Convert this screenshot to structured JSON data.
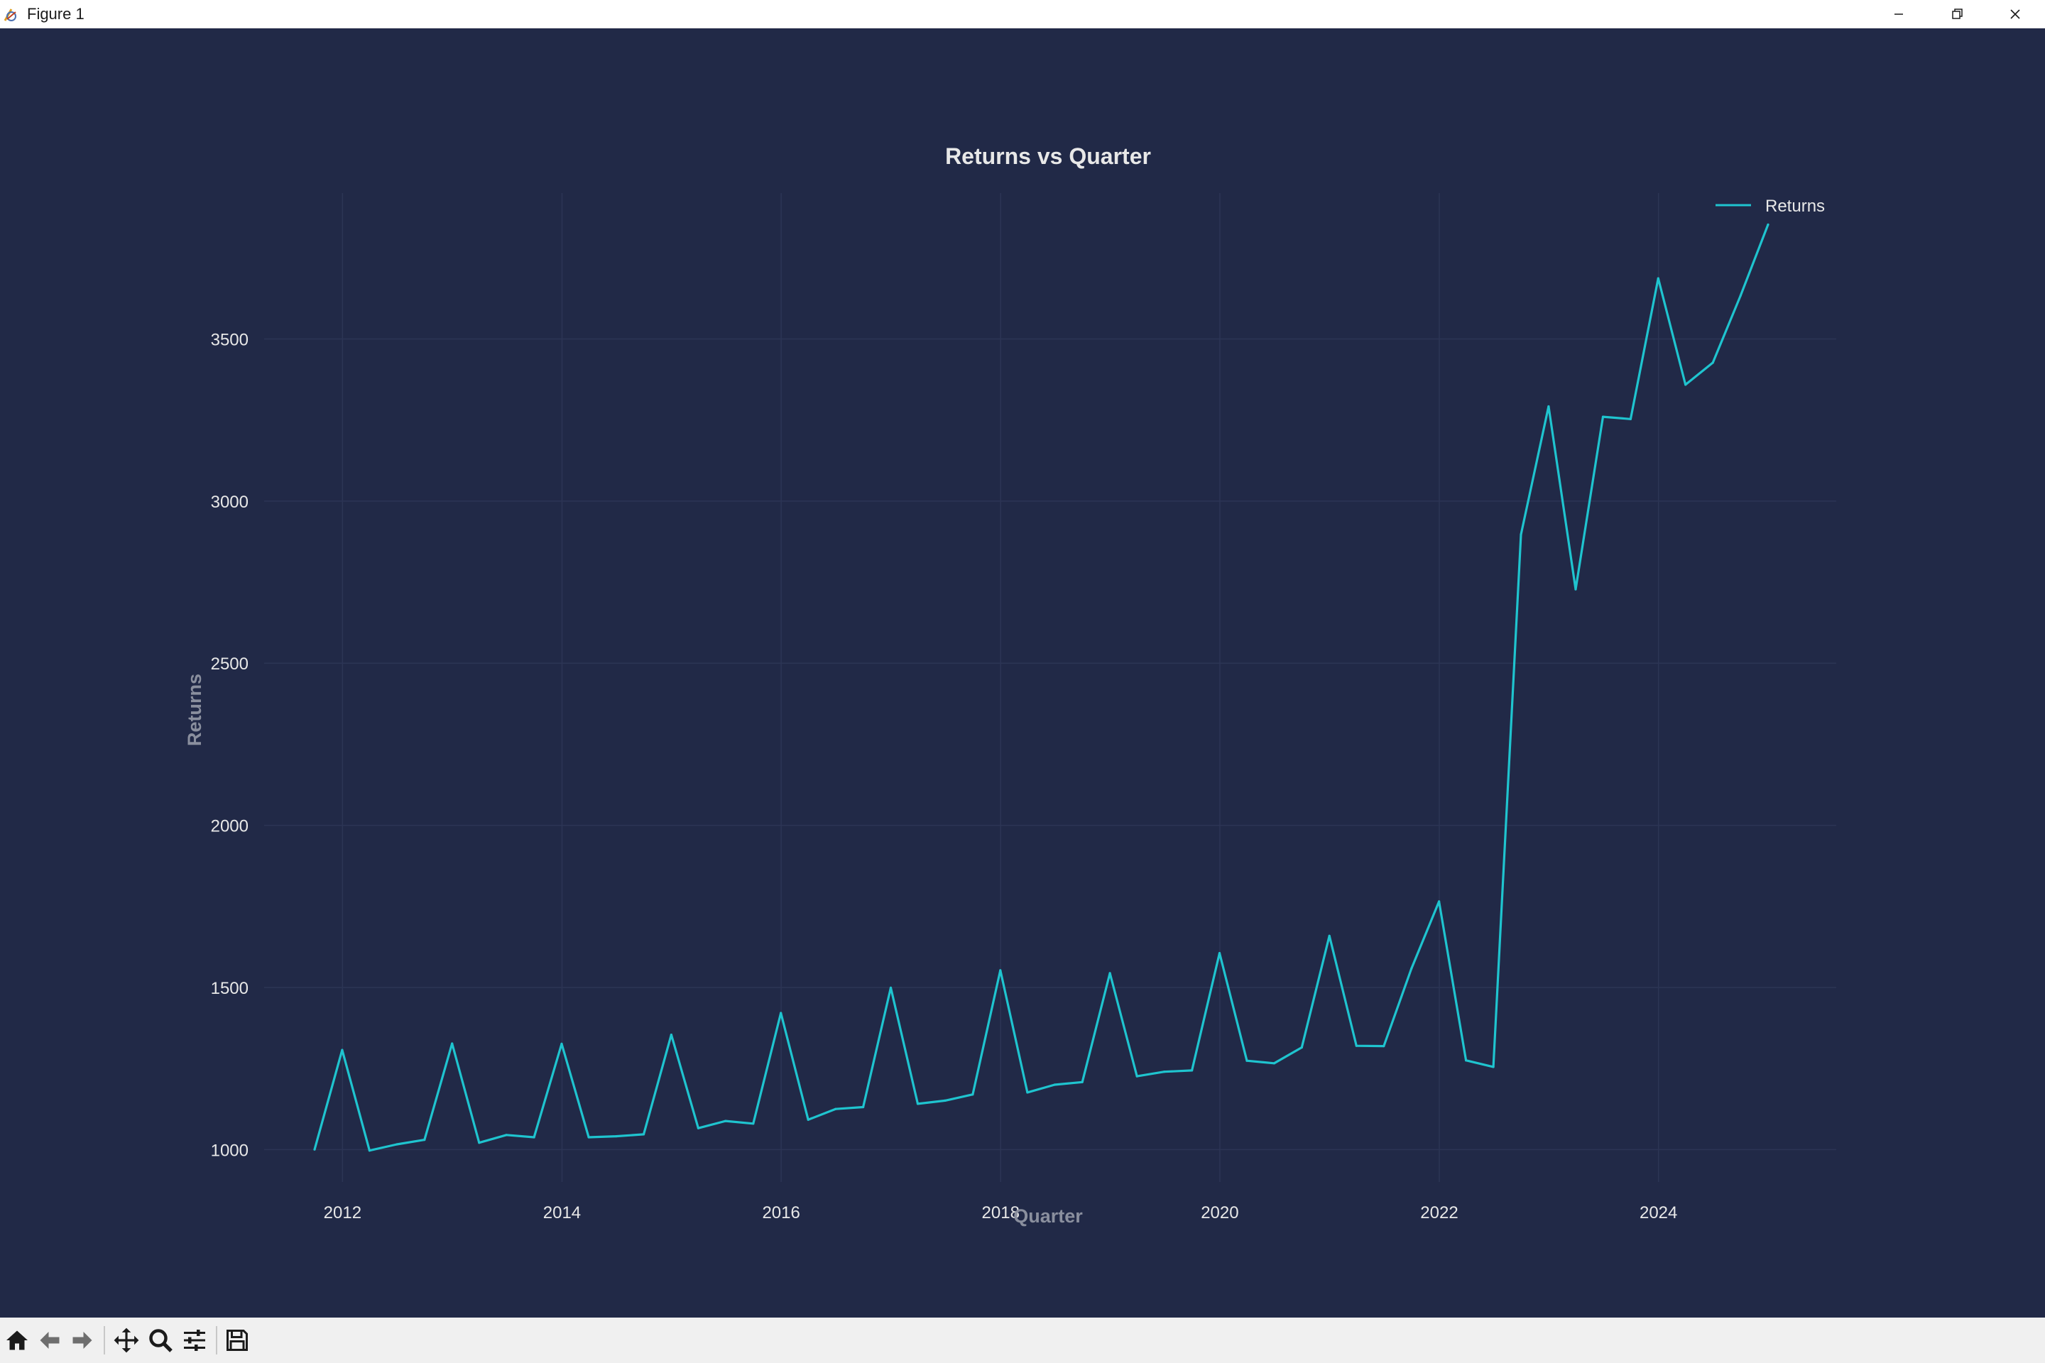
{
  "window": {
    "title": "Figure 1"
  },
  "toolbar": {
    "tools": [
      "home-icon",
      "back-arrow-icon",
      "forward-arrow-icon",
      "pan-icon",
      "zoom-icon",
      "configure-subplots-icon",
      "save-icon"
    ]
  },
  "colors": {
    "background": "#212947",
    "line": "#1fc4cf",
    "grid": "#2c3555",
    "text": "#e8e8e8",
    "label": "#8a8f9e"
  },
  "chart_data": {
    "type": "line",
    "title": "Returns vs Quarter",
    "xlabel": "Quarter",
    "ylabel": "Returns",
    "xlim": [
      "2011-04-15",
      "2025-08-15"
    ],
    "ylim": [
      900,
      3950
    ],
    "x_ticks": [
      {
        "label": "2012",
        "date": "2012-01-01"
      },
      {
        "label": "2014",
        "date": "2014-01-01"
      },
      {
        "label": "2016",
        "date": "2016-01-01"
      },
      {
        "label": "2018",
        "date": "2018-01-01"
      },
      {
        "label": "2020",
        "date": "2020-01-01"
      },
      {
        "label": "2022",
        "date": "2022-01-01"
      },
      {
        "label": "2024",
        "date": "2024-01-01"
      }
    ],
    "y_ticks": [
      1000,
      1500,
      2000,
      2500,
      3000,
      3500
    ],
    "grid": true,
    "legend_position": "top-right",
    "series": [
      {
        "name": "Returns",
        "x": [
          "2011-09-30",
          "2011-12-31",
          "2012-03-31",
          "2012-06-30",
          "2012-09-30",
          "2012-12-31",
          "2013-03-31",
          "2013-06-30",
          "2013-09-30",
          "2013-12-31",
          "2014-03-31",
          "2014-06-30",
          "2014-09-30",
          "2014-12-31",
          "2015-03-31",
          "2015-06-30",
          "2015-09-30",
          "2015-12-31",
          "2016-03-31",
          "2016-06-30",
          "2016-09-30",
          "2016-12-31",
          "2017-03-31",
          "2017-06-30",
          "2017-09-30",
          "2017-12-31",
          "2018-03-31",
          "2018-06-30",
          "2018-09-30",
          "2018-12-31",
          "2019-03-31",
          "2019-06-30",
          "2019-09-30",
          "2019-12-31",
          "2020-03-31",
          "2020-06-30",
          "2020-09-30",
          "2020-12-31",
          "2021-03-31",
          "2021-06-30",
          "2021-09-30",
          "2021-12-31",
          "2022-03-31",
          "2022-06-30",
          "2022-09-30",
          "2022-12-31",
          "2023-03-31",
          "2023-06-30",
          "2023-09-30",
          "2023-12-31",
          "2024-03-31",
          "2024-06-30",
          "2024-09-30",
          "2024-12-31"
        ],
        "values": [
          1000,
          1307,
          997,
          1016,
          1030,
          1327,
          1021,
          1045,
          1038,
          1326,
          1038,
          1041,
          1047,
          1354,
          1066,
          1088,
          1080,
          1421,
          1092,
          1125,
          1131,
          1499,
          1141,
          1151,
          1170,
          1553,
          1176,
          1200,
          1208,
          1544,
          1226,
          1240,
          1244,
          1606,
          1274,
          1266,
          1315,
          1659,
          1320,
          1319,
          1558,
          1765,
          1275,
          1255,
          2897,
          3292,
          2728,
          3260,
          3253,
          3687,
          3359,
          3427,
          3633,
          3853
        ]
      }
    ]
  }
}
